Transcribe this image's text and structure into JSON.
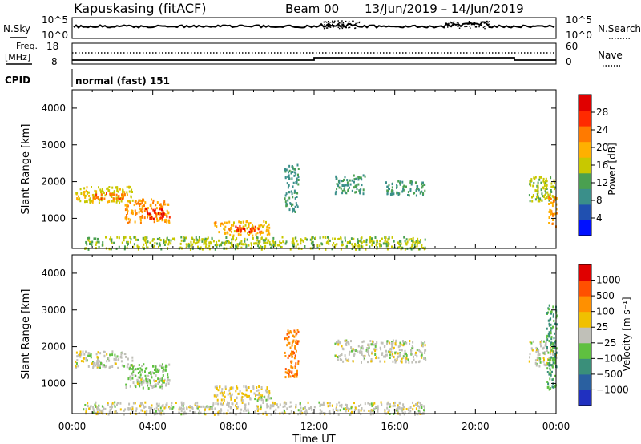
{
  "header": {
    "station": "Kapuskasing (fitACF)",
    "beam": "Beam 00",
    "date_range": "13/Jun/2019 – 14/Jun/2019"
  },
  "top_panels": {
    "nsky_label": "N.Sky",
    "nsky_top_tick": "10^5",
    "nsky_bottom_tick": "10^0",
    "nsky_right_top_tick": "10^5",
    "nsky_right_bottom_tick": "10^0",
    "nsearch_label": "N.Search",
    "freq_label": "Freq.",
    "freq_unit": "[MHz]",
    "freq_top_tick": "18",
    "freq_bottom_tick": "8",
    "nave_label": "Nave",
    "nave_top_tick": "60",
    "nave_bottom_tick": "0",
    "cpid_label": "CPID",
    "cpid_text": "normal (fast) 151"
  },
  "time_axis": {
    "label": "Time UT",
    "ticks": [
      "00:00",
      "04:00",
      "08:00",
      "12:00",
      "16:00",
      "20:00",
      "00:00"
    ]
  },
  "chart_data": [
    {
      "type": "heatmap",
      "panel": "power",
      "ylabel": "Slant Range [km]",
      "yticks": [
        "1000",
        "2000",
        "3000",
        "4000"
      ],
      "ylim": [
        180,
        4500
      ],
      "xlim_hours": [
        0,
        24
      ],
      "colorbar_label": "Power [dB]",
      "colorbar_ticks": [
        "4",
        "8",
        "12",
        "16",
        "20",
        "24",
        "28"
      ],
      "colorbar_range": [
        0,
        30
      ],
      "colormap": [
        "#0010ff",
        "#2050b0",
        "#3a8f8a",
        "#4aa050",
        "#c8c800",
        "#ffb000",
        "#ff7a00",
        "#ff2a00",
        "#e00000"
      ],
      "regions": [
        {
          "t0": 0.1,
          "t1": 3.0,
          "r0": 1450,
          "r1": 1900,
          "value": 16
        },
        {
          "t0": 1.0,
          "t1": 2.6,
          "r0": 1550,
          "r1": 1720,
          "value": 22
        },
        {
          "t0": 2.6,
          "t1": 4.8,
          "r0": 900,
          "r1": 1550,
          "value": 20
        },
        {
          "t0": 3.6,
          "t1": 4.8,
          "r0": 1000,
          "r1": 1300,
          "value": 27
        },
        {
          "t0": 7.0,
          "t1": 9.8,
          "r0": 560,
          "r1": 950,
          "value": 18
        },
        {
          "t0": 7.8,
          "t1": 9.3,
          "r0": 650,
          "r1": 820,
          "value": 26
        },
        {
          "t0": 10.5,
          "t1": 11.2,
          "r0": 1200,
          "r1": 2500,
          "value": 9
        },
        {
          "t0": 13.0,
          "t1": 14.5,
          "r0": 1700,
          "r1": 2200,
          "value": 10
        },
        {
          "t0": 15.5,
          "t1": 17.5,
          "r0": 1650,
          "r1": 2050,
          "value": 10
        },
        {
          "t0": 22.6,
          "t1": 24.0,
          "r0": 1500,
          "r1": 2200,
          "value": 14
        },
        {
          "t0": 23.6,
          "t1": 24.0,
          "r0": 800,
          "r1": 1600,
          "value": 20
        },
        {
          "t0": 0.5,
          "t1": 17.5,
          "r0": 180,
          "r1": 520,
          "value": 14
        }
      ]
    },
    {
      "type": "heatmap",
      "panel": "velocity",
      "ylabel": "Slant Range [km]",
      "yticks": [
        "1000",
        "2000",
        "3000",
        "4000"
      ],
      "ylim": [
        180,
        4500
      ],
      "xlim_hours": [
        0,
        24
      ],
      "colorbar_label": "Velocity [m s⁻¹]",
      "colorbar_ticks": [
        "1000",
        "500",
        "100",
        "25",
        "−25",
        "−100",
        "−500",
        "−1000"
      ],
      "colorbar_range": [
        -1200,
        1200
      ],
      "colormap": [
        "#2030c0",
        "#2a60a0",
        "#3a8f7a",
        "#5fc040",
        "#c0c0b8",
        "#f0c000",
        "#ff9000",
        "#ff5000",
        "#e00000"
      ],
      "regions": [
        {
          "t0": 0.1,
          "t1": 3.0,
          "r0": 1450,
          "r1": 1900,
          "value": 0
        },
        {
          "t0": 2.6,
          "t1": 4.8,
          "r0": 900,
          "r1": 1550,
          "value": -180
        },
        {
          "t0": 3.0,
          "t1": 4.8,
          "r0": 1000,
          "r1": 1150,
          "value": 150
        },
        {
          "t0": 7.0,
          "t1": 9.8,
          "r0": 560,
          "r1": 950,
          "value": 120
        },
        {
          "t0": 9.0,
          "t1": 9.9,
          "r0": 560,
          "r1": 720,
          "value": -90
        },
        {
          "t0": 10.5,
          "t1": 11.2,
          "r0": 1200,
          "r1": 2500,
          "value": 600
        },
        {
          "t0": 13.0,
          "t1": 17.5,
          "r0": 1600,
          "r1": 2200,
          "value": 0
        },
        {
          "t0": 22.6,
          "t1": 24.0,
          "r0": 1500,
          "r1": 2200,
          "value": 0
        },
        {
          "t0": 23.5,
          "t1": 24.0,
          "r0": 800,
          "r1": 3200,
          "value": -400
        },
        {
          "t0": 0.5,
          "t1": 17.5,
          "r0": 180,
          "r1": 520,
          "value": 20
        }
      ]
    }
  ]
}
